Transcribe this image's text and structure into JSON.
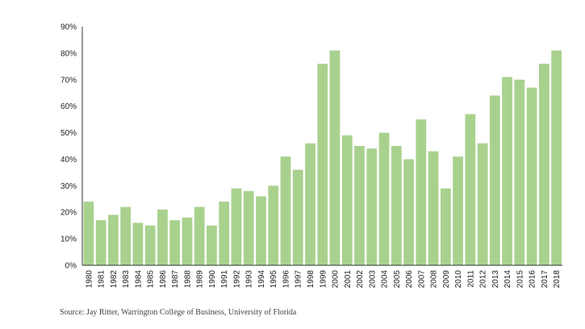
{
  "chart_data": {
    "type": "bar",
    "categories": [
      "1980",
      "1981",
      "1982",
      "1983",
      "1984",
      "1985",
      "1986",
      "1987",
      "1988",
      "1989",
      "1990",
      "1991",
      "1992",
      "1993",
      "1994",
      "1995",
      "1996",
      "1997",
      "1998",
      "1999",
      "2000",
      "2001",
      "2002",
      "2003",
      "2004",
      "2005",
      "2006",
      "2007",
      "2008",
      "2009",
      "2010",
      "2011",
      "2012",
      "2013",
      "2014",
      "2015",
      "2016",
      "2017",
      "2018"
    ],
    "values": [
      24,
      17,
      19,
      22,
      16,
      15,
      21,
      17,
      18,
      22,
      15,
      24,
      29,
      28,
      26,
      30,
      41,
      36,
      46,
      76,
      81,
      49,
      45,
      44,
      50,
      45,
      40,
      55,
      43,
      29,
      41,
      57,
      46,
      64,
      71,
      70,
      67,
      76,
      81
    ],
    "ylim": [
      0,
      90
    ],
    "yticks": [
      "0%",
      "10%",
      "20%",
      "30%",
      "40%",
      "50%",
      "60%",
      "70%",
      "80%",
      "90%"
    ],
    "grid": false,
    "bar_color": "#a9d18e",
    "axis_color": "#333333"
  },
  "source": "Source: Jay Ritter, Warrington College of Business, University of Florida"
}
